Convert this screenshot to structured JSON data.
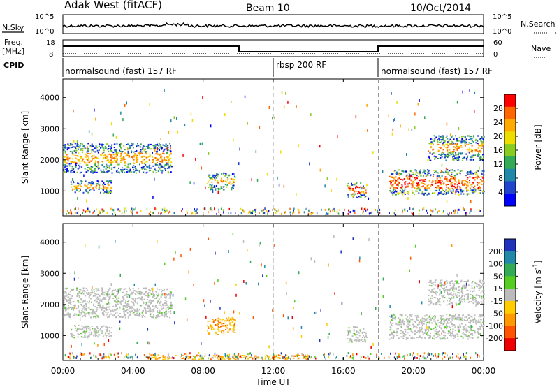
{
  "header": {
    "station": "Adak West (fitACF)",
    "beam": "Beam 10",
    "date": "10/Oct/2014"
  },
  "top_panels": {
    "nsky_label": "N.Sky",
    "nsky_ticks": [
      "10^5",
      "10^0"
    ],
    "nsearch_label": "N.Search",
    "nsearch_ticks": [
      "10^5",
      "10^0"
    ],
    "freq_label_1": "Freq.",
    "freq_label_2": "[MHz]",
    "freq_ticks": [
      "18",
      "8"
    ],
    "nave_label": "Nave",
    "nave_ticks": [
      "60",
      "0"
    ],
    "cpid_label": "CPID",
    "cpid_segments": [
      {
        "label": "normalsound (fast) 157 RF",
        "start_hour": 0,
        "end_hour": 12
      },
      {
        "label": "rbsp 200 RF",
        "start_hour": 12,
        "end_hour": 18
      },
      {
        "label": "normalsound (fast) 157 RF",
        "start_hour": 18,
        "end_hour": 24
      }
    ]
  },
  "chart_data": [
    {
      "type": "heatmap",
      "title": "",
      "ylabel": "Slant Range [km]",
      "xlabel": "",
      "x_range_hours": [
        0,
        24
      ],
      "ylim": [
        200,
        4600
      ],
      "y_ticks": [
        1000,
        2000,
        3000,
        4000
      ],
      "colorbar_label": "Power [dB]",
      "colorbar_ticks": [
        "28",
        "24",
        "20",
        "16",
        "12",
        "8",
        "4"
      ],
      "colorbar_colors": [
        "#ff0000",
        "#ff6600",
        "#ffaa00",
        "#eedd00",
        "#88cc22",
        "#33aa55",
        "#2288aa",
        "#2244cc",
        "#0000ff"
      ],
      "echo_regions": [
        {
          "t0": 0.0,
          "t1": 6.2,
          "r0": 1600,
          "r1": 2550,
          "level": "mid"
        },
        {
          "t0": 0.4,
          "t1": 2.8,
          "r0": 950,
          "r1": 1350,
          "level": "mid"
        },
        {
          "t0": 8.2,
          "t1": 9.8,
          "r0": 1050,
          "r1": 1600,
          "level": "mid"
        },
        {
          "t0": 16.2,
          "t1": 17.3,
          "r0": 800,
          "r1": 1300,
          "level": "high"
        },
        {
          "t0": 18.6,
          "t1": 24.0,
          "r0": 900,
          "r1": 1700,
          "level": "high"
        },
        {
          "t0": 20.8,
          "t1": 24.0,
          "r0": 2000,
          "r1": 2800,
          "level": "mid"
        }
      ]
    },
    {
      "type": "heatmap",
      "title": "",
      "ylabel": "Slant Range [km]",
      "xlabel": "Time UT",
      "x_range_hours": [
        0,
        24
      ],
      "x_ticks": [
        "00:00",
        "04:00",
        "08:00",
        "12:00",
        "16:00",
        "20:00",
        "00:00"
      ],
      "ylim": [
        200,
        4600
      ],
      "y_ticks": [
        1000,
        2000,
        3000,
        4000
      ],
      "colorbar_label": "Velocity [m s^-1]",
      "colorbar_ticks": [
        "200",
        "100",
        "50",
        "15",
        "-15",
        "-50",
        "-100",
        "-200"
      ],
      "colorbar_colors": [
        "#2233bb",
        "#2288aa",
        "#33aa55",
        "#55cc22",
        "#bbbbbb",
        "#ffcc00",
        "#ff9900",
        "#ff5500",
        "#ee0000"
      ],
      "echo_regions": [
        {
          "t0": 0.0,
          "t1": 6.2,
          "r0": 1600,
          "r1": 2550,
          "level": "gray"
        },
        {
          "t0": 0.4,
          "t1": 2.8,
          "r0": 950,
          "r1": 1350,
          "level": "gray"
        },
        {
          "t0": 8.2,
          "t1": 9.8,
          "r0": 1050,
          "r1": 1600,
          "level": "orange"
        },
        {
          "t0": 16.2,
          "t1": 17.3,
          "r0": 800,
          "r1": 1300,
          "level": "gray"
        },
        {
          "t0": 18.6,
          "t1": 24.0,
          "r0": 900,
          "r1": 1700,
          "level": "gray"
        },
        {
          "t0": 20.8,
          "t1": 24.0,
          "r0": 2000,
          "r1": 2800,
          "level": "gray"
        },
        {
          "t0": 5.0,
          "t1": 14.0,
          "r0": 250,
          "r1": 400,
          "level": "orange"
        }
      ]
    }
  ]
}
